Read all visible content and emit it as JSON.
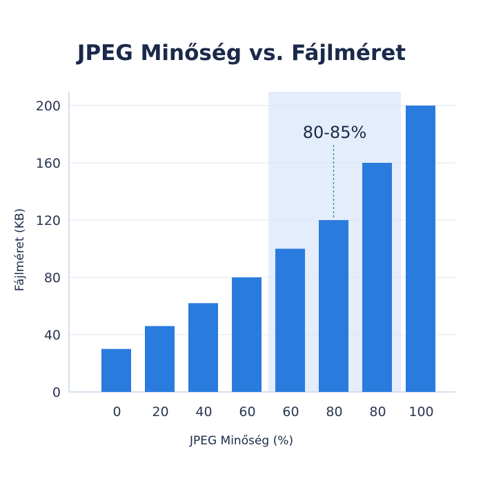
{
  "colors": {
    "bar": "#2a7bde",
    "highlight": "#e3edfb",
    "grid": "#dde6f1",
    "axis": "#c8d6e8",
    "text": "#1b2a4a",
    "annotation_line": "#2f8c7e"
  },
  "chart_data": {
    "type": "bar",
    "title": "JPEG Minőség vs. Fájlméret",
    "xlabel": "JPEG Minőség (%)",
    "ylabel": "Fájlméret (KB)",
    "categories": [
      "0",
      "20",
      "40",
      "60",
      "60",
      "80",
      "80",
      "100"
    ],
    "values": [
      30,
      46,
      62,
      80,
      100,
      120,
      160,
      200
    ],
    "ylim": [
      0,
      200
    ],
    "yticks": [
      "0",
      "40",
      "80",
      "120",
      "160",
      "200"
    ],
    "ytick_values": [
      0,
      40,
      80,
      120,
      160,
      200
    ],
    "grid": true,
    "legend": "none",
    "highlight": {
      "label": "80-85%",
      "from_index": 4,
      "to_index": 6,
      "pointer_index": 5
    }
  }
}
